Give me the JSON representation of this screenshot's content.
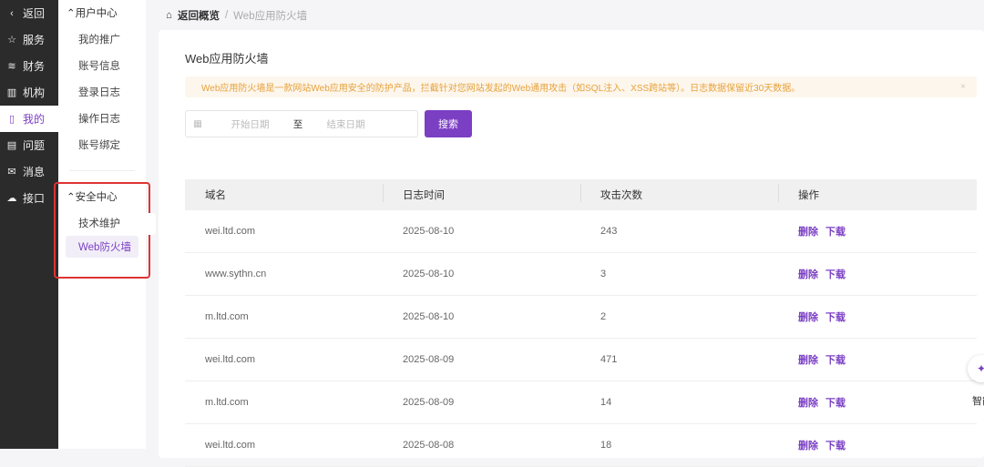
{
  "nav": [
    {
      "label": "返回",
      "icon": "chevron-left-icon",
      "g": "‹"
    },
    {
      "label": "服务",
      "icon": "star-icon",
      "g": "☆"
    },
    {
      "label": "财务",
      "icon": "database-icon",
      "g": "≋"
    },
    {
      "label": "机构",
      "icon": "building-icon",
      "g": "▥"
    },
    {
      "label": "我的",
      "icon": "bookmark-icon",
      "g": "▯",
      "active": true
    },
    {
      "label": "问题",
      "icon": "document-icon",
      "g": "▤"
    },
    {
      "label": "消息",
      "icon": "mail-icon",
      "g": "✉"
    },
    {
      "label": "接口",
      "icon": "cloud-icon",
      "g": "☁"
    }
  ],
  "side": {
    "group1": "用户中心",
    "items1": [
      "我的推广",
      "账号信息",
      "登录日志",
      "操作日志",
      "账号绑定"
    ],
    "group2": "安全中心",
    "items2": [
      "技术维护",
      "Web防火墙"
    ]
  },
  "breadcrumb": {
    "home": "返回概览",
    "sep": "/",
    "current": "Web应用防火墙"
  },
  "title": "Web应用防火墙",
  "alert": "Web应用防火墙是一款网站Web应用安全的防护产品，拦截针对您网站发起的Web通用攻击（如SQL注入、XSS跨站等）。日志数据保留近30天数据。",
  "date": {
    "start": "开始日期",
    "to": "至",
    "end": "结束日期"
  },
  "search": "搜索",
  "columns": [
    "域名",
    "日志时间",
    "攻击次数",
    "操作"
  ],
  "rows": [
    [
      "wei.ltd.com",
      "2025-08-10",
      "243"
    ],
    [
      "www.sythn.cn",
      "2025-08-10",
      "3"
    ],
    [
      "m.ltd.com",
      "2025-08-10",
      "2"
    ],
    [
      "wei.ltd.com",
      "2025-08-09",
      "471"
    ],
    [
      "m.ltd.com",
      "2025-08-09",
      "14"
    ],
    [
      "wei.ltd.com",
      "2025-08-08",
      "18"
    ]
  ],
  "actions": {
    "delete": "删除",
    "download": "下载"
  },
  "assistant": "智能"
}
